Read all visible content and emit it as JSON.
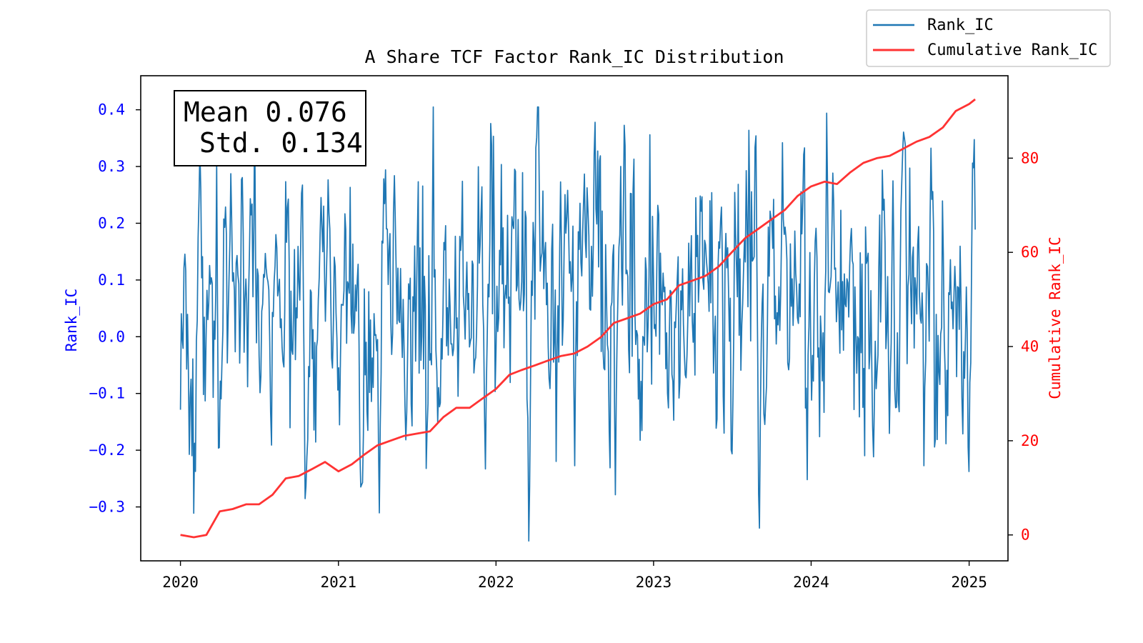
{
  "chart_data": {
    "type": "line",
    "title": "A Share TCF Factor Rank_IC Distribution",
    "x_ticks": [
      "2020",
      "2021",
      "2022",
      "2023",
      "2024",
      "2025"
    ],
    "xlim": [
      "2019-10-01",
      "2025-04-01"
    ],
    "y_left": {
      "label": "Rank_IC",
      "ticks": [
        "0.4",
        "0.3",
        "0.2",
        "0.1",
        "0.0",
        "−0.1",
        "−0.2",
        "−0.3"
      ],
      "lim": [
        -0.395,
        0.46
      ],
      "color": "#0000ff"
    },
    "y_right": {
      "label": "Cumulative Rank_IC",
      "ticks": [
        "0",
        "20",
        "40",
        "60",
        "80"
      ],
      "lim": [
        -5.5,
        97.5
      ],
      "color": "#ff0000"
    },
    "annotation": {
      "line1": "Mean 0.076",
      "line2": "Std. 0.134"
    },
    "legend": {
      "placement": "top-right"
    },
    "grid": false,
    "series": [
      {
        "name": "Rank_IC",
        "color": "#1f77b4",
        "axis": "left",
        "n_points": 900,
        "mean": 0.076,
        "std": 0.134,
        "range": [
          -0.36,
          0.405
        ]
      },
      {
        "name": "Cumulative Rank_IC",
        "color": "#ff3333",
        "axis": "right",
        "points": [
          [
            "2020-01-01",
            0
          ],
          [
            "2020-02-01",
            -0.5
          ],
          [
            "2020-03-01",
            0
          ],
          [
            "2020-04-01",
            5
          ],
          [
            "2020-05-01",
            5.5
          ],
          [
            "2020-06-01",
            6.5
          ],
          [
            "2020-07-01",
            6.5
          ],
          [
            "2020-08-01",
            8.5
          ],
          [
            "2020-09-01",
            12
          ],
          [
            "2020-10-01",
            12.5
          ],
          [
            "2020-11-01",
            14
          ],
          [
            "2020-12-01",
            15.5
          ],
          [
            "2021-01-01",
            13.5
          ],
          [
            "2021-02-01",
            15
          ],
          [
            "2021-03-01",
            17
          ],
          [
            "2021-04-01",
            19
          ],
          [
            "2021-05-01",
            20
          ],
          [
            "2021-06-01",
            21
          ],
          [
            "2021-07-01",
            21.5
          ],
          [
            "2021-08-01",
            22
          ],
          [
            "2021-09-01",
            25
          ],
          [
            "2021-10-01",
            27
          ],
          [
            "2021-11-01",
            27
          ],
          [
            "2021-12-01",
            29
          ],
          [
            "2022-01-01",
            31
          ],
          [
            "2022-02-01",
            34
          ],
          [
            "2022-03-01",
            35
          ],
          [
            "2022-04-01",
            36
          ],
          [
            "2022-05-01",
            37
          ],
          [
            "2022-06-01",
            38
          ],
          [
            "2022-07-01",
            38.5
          ],
          [
            "2022-08-01",
            40
          ],
          [
            "2022-09-01",
            42
          ],
          [
            "2022-10-01",
            45
          ],
          [
            "2022-11-01",
            46
          ],
          [
            "2022-12-01",
            47
          ],
          [
            "2023-01-01",
            49
          ],
          [
            "2023-02-01",
            50
          ],
          [
            "2023-03-01",
            53
          ],
          [
            "2023-04-01",
            54
          ],
          [
            "2023-05-01",
            55
          ],
          [
            "2023-06-01",
            57
          ],
          [
            "2023-07-01",
            60
          ],
          [
            "2023-08-01",
            63
          ],
          [
            "2023-09-01",
            65
          ],
          [
            "2023-10-01",
            67
          ],
          [
            "2023-11-01",
            69
          ],
          [
            "2023-12-01",
            72
          ],
          [
            "2024-01-01",
            74
          ],
          [
            "2024-02-01",
            75
          ],
          [
            "2024-03-01",
            74.5
          ],
          [
            "2024-04-01",
            77
          ],
          [
            "2024-05-01",
            79
          ],
          [
            "2024-06-01",
            80
          ],
          [
            "2024-07-01",
            80.5
          ],
          [
            "2024-08-01",
            82
          ],
          [
            "2024-09-01",
            83.5
          ],
          [
            "2024-10-01",
            84.5
          ],
          [
            "2024-11-01",
            86.5
          ],
          [
            "2024-12-01",
            90
          ],
          [
            "2025-01-01",
            91.5
          ],
          [
            "2025-01-15",
            92.5
          ]
        ]
      }
    ]
  }
}
